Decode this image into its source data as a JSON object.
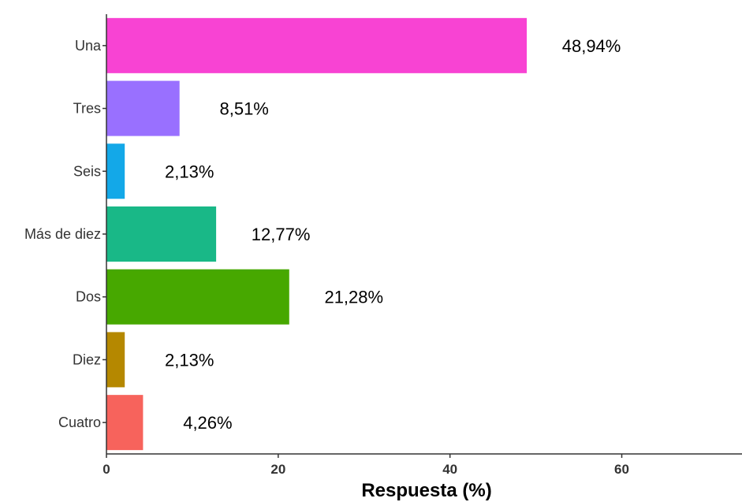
{
  "chart_data": {
    "type": "bar",
    "orientation": "horizontal",
    "categories": [
      "Una",
      "Tres",
      "Seis",
      "Más de diez",
      "Dos",
      "Diez",
      "Cuatro"
    ],
    "values": [
      48.94,
      8.51,
      2.13,
      12.77,
      21.28,
      2.13,
      4.26
    ],
    "value_labels": [
      "48,94%",
      "8,51%",
      "2,13%",
      "12,77%",
      "21,28%",
      "2,13%",
      "4,26%"
    ],
    "colors": [
      "#F843D3",
      "#9970FF",
      "#13A8E8",
      "#19B887",
      "#47A800",
      "#B58800",
      "#F7635C"
    ],
    "xlabel": "Respuesta (%)",
    "ylabel": "",
    "xlim": [
      0,
      74
    ],
    "xticks": [
      0,
      20,
      40,
      60
    ],
    "grid": false,
    "legend": "none"
  }
}
